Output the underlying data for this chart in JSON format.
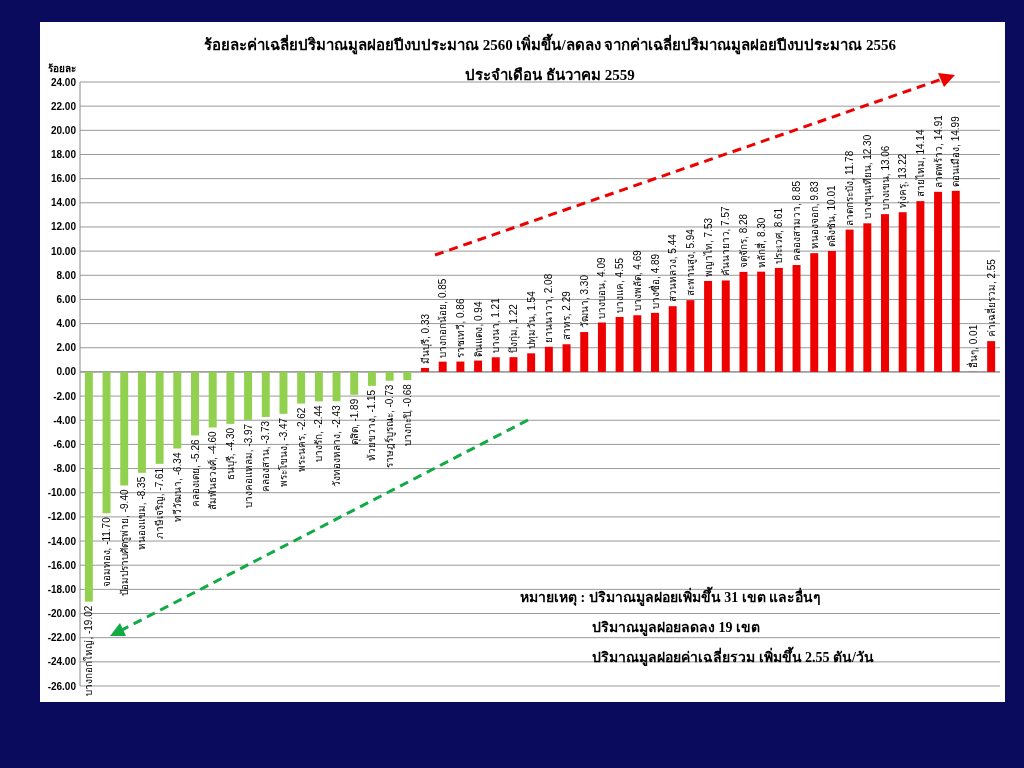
{
  "chart_data": {
    "type": "bar",
    "title": "ร้อยละค่าเฉลี่ยปริมาณมูลฝอยปีงบประมาณ 2560 เพิ่มขึ้น/ลดลง จากค่าเฉลี่ยปริมาณมูลฝอยปีงบประมาณ 2556",
    "subtitle": "ประจำเดือน ธันวาคม 2559",
    "ylabel": "ร้อยละ",
    "categories": [
      null,
      null,
      null,
      null,
      null,
      null,
      null,
      null,
      null,
      null,
      null,
      null,
      null,
      null,
      null,
      null,
      null,
      null,
      null,
      null,
      null,
      null,
      null,
      null,
      null,
      null,
      null,
      null,
      null,
      null,
      null,
      null,
      null,
      null,
      null,
      null,
      null,
      null,
      null,
      null,
      null,
      null,
      null,
      null,
      null,
      null,
      null,
      null,
      null,
      null,
      null,
      null
    ],
    "values": [
      -19.02,
      -11.7,
      -9.4,
      -8.35,
      -7.61,
      -6.34,
      -5.26,
      -4.6,
      -4.3,
      -3.97,
      -3.73,
      -3.47,
      -2.62,
      -2.44,
      -2.43,
      -1.89,
      -1.15,
      -0.73,
      -0.68,
      0.33,
      0.85,
      0.86,
      0.94,
      1.21,
      1.22,
      1.54,
      2.08,
      2.29,
      3.3,
      4.09,
      4.55,
      4.69,
      4.89,
      5.44,
      5.94,
      7.53,
      7.57,
      8.28,
      8.3,
      8.61,
      8.85,
      9.83,
      10.01,
      11.78,
      12.3,
      13.06,
      13.22,
      14.14,
      14.91,
      14.99,
      0.01,
      2.55
    ],
    "value_labels": [
      "บางกอกใหญ่, -19.02",
      "จอมทอง, -11.70",
      "ป้อมปราบศัตรูพ่าย, -9.40",
      "หนองแขม, -8.35",
      "ภาษีเจริญ, -7.61",
      "ทวีวัฒนา, -6.34",
      "คลองเตย, -5.26",
      "สัมพันธวงศ์, -4.60",
      "ธนบุรี, -4.30",
      "บางคอแหลม, -3.97",
      "คลองสาน, -3.73",
      "พระโขนง, -3.47",
      "พระนคร, -2.62",
      "บางรัก, -2.44",
      "วังทองหลาง, -2.43",
      "ดุสิต, -1.89",
      "ห้วยขวาง, -1.15",
      "ราษฎร์บูรณะ, -0.73",
      "บางกะปิ, -0.68",
      "มีนบุรี, 0.33",
      "บางกอกน้อย, 0.85",
      "ราชเทวี, 0.86",
      "ดินแดง, 0.94",
      "บางนา, 1.21",
      "บึงกุ่ม, 1.22",
      "ปทุมวัน, 1.54",
      "ยานนาวา, 2.08",
      "สาทร, 2.29",
      "วัฒนา, 3.30",
      "บางบอน, 4.09",
      "บางแค, 4.55",
      "บางพลัด, 4.69",
      "บางซื่อ, 4.89",
      "สวนหลวง, 5.44",
      "สะพานสูง, 5.94",
      "พญาไท, 7.53",
      "คันนายาว, 7.57",
      "จตุจักร, 8.28",
      "หลักสี่, 8.30",
      "ประเวศ, 8.61",
      "คลองสามวา, 8.85",
      "หนองจอก, 9.83",
      "ตลิ่งชัน, 10.01",
      "ลาดกระบัง, 11.78",
      "บางขุนเทียน, 12.30",
      "บางเขน, 13.06",
      "ทุ่งครุ, 13.22",
      "สายไหม, 14.14",
      "ลาดพร้าว, 14.91",
      "ดอนเมือง, 14.99",
      "อื่นๆ, 0.01",
      "ค่าเฉลี่ยรวม, 2.55"
    ],
    "colors": [
      "#92d050",
      "#92d050",
      "#92d050",
      "#92d050",
      "#92d050",
      "#92d050",
      "#92d050",
      "#92d050",
      "#92d050",
      "#92d050",
      "#92d050",
      "#92d050",
      "#92d050",
      "#92d050",
      "#92d050",
      "#92d050",
      "#92d050",
      "#92d050",
      "#92d050",
      "#ee0000",
      "#ee0000",
      "#ee0000",
      "#ee0000",
      "#ee0000",
      "#ee0000",
      "#ee0000",
      "#ee0000",
      "#ee0000",
      "#ee0000",
      "#ee0000",
      "#ee0000",
      "#ee0000",
      "#ee0000",
      "#ee0000",
      "#ee0000",
      "#ee0000",
      "#ee0000",
      "#ee0000",
      "#ee0000",
      "#ee0000",
      "#ee0000",
      "#ee0000",
      "#ee0000",
      "#ee0000",
      "#ee0000",
      "#ee0000",
      "#ee0000",
      "#ee0000",
      "#ee0000",
      "#ee0000",
      "#ee0000",
      "#ee0000"
    ],
    "ylim": [
      -26,
      24
    ],
    "yticks": [
      {
        "value": -26,
        "label": "-26.00"
      },
      {
        "value": -24,
        "label": "-24.00"
      },
      {
        "value": -22,
        "label": "-22.00"
      },
      {
        "value": -20,
        "label": "-20.00"
      },
      {
        "value": -18,
        "label": "-18.00"
      },
      {
        "value": -16,
        "label": "-16.00"
      },
      {
        "value": -14,
        "label": "-14.00"
      },
      {
        "value": -12,
        "label": "-12.00"
      },
      {
        "value": -10,
        "label": "-10.00"
      },
      {
        "value": -8,
        "label": "-8.00"
      },
      {
        "value": -6,
        "label": "-6.00"
      },
      {
        "value": -4,
        "label": "-4.00"
      },
      {
        "value": -2,
        "label": "-2.00"
      },
      {
        "value": 0,
        "label": "0.00"
      },
      {
        "value": 2,
        "label": "2.00"
      },
      {
        "value": 4,
        "label": "4.00"
      },
      {
        "value": 6,
        "label": "6.00"
      },
      {
        "value": 8,
        "label": "8.00"
      },
      {
        "value": 10,
        "label": "10.00"
      },
      {
        "value": 12,
        "label": "12.00"
      },
      {
        "value": 14,
        "label": "14.00"
      },
      {
        "value": 16,
        "label": "16.00"
      },
      {
        "value": 18,
        "label": "18.00"
      },
      {
        "value": 20,
        "label": "20.00"
      },
      {
        "value": 22,
        "label": "22.00"
      },
      {
        "value": 24,
        "label": "24.00"
      }
    ],
    "grid": "y",
    "annotations": [
      "หมายเหตุ : ปริมาณมูลฝอยเพิ่มขึ้น   31  เขต และอื่นๆ",
      "ปริมาณมูลฝอยลดลง     19  เขต",
      "ปริมาณมูลฝอยค่าเฉลี่ยรวม เพิ่มขึ้น  2.55 ตัน/วัน"
    ]
  }
}
